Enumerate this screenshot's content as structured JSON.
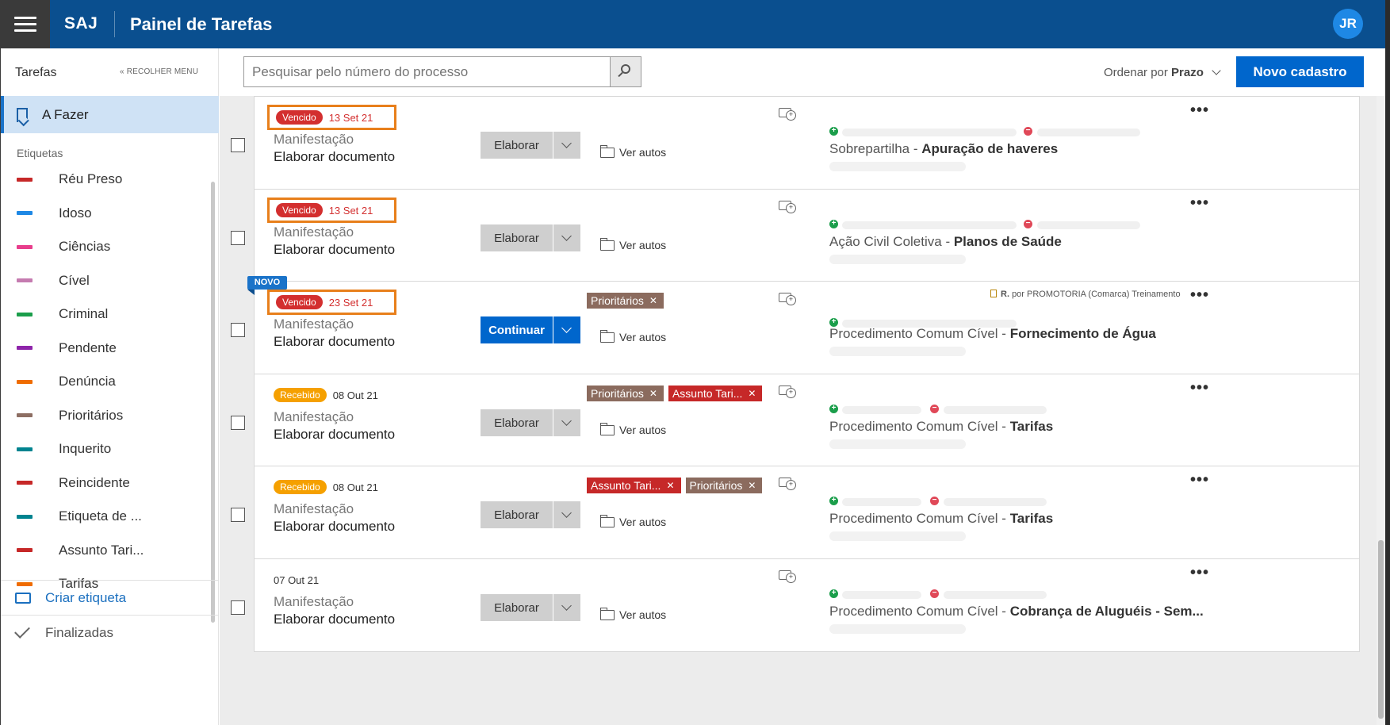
{
  "header": {
    "brand": "SAJ",
    "title": "Painel de Tarefas",
    "avatar": "JR"
  },
  "sidebar": {
    "section": "Tarefas",
    "collapse": "« RECOLHER MENU",
    "active": "A Fazer",
    "tags_header": "Etiquetas",
    "tags": [
      {
        "label": "Réu Preso",
        "color": "#c62828"
      },
      {
        "label": "Idoso",
        "color": "#1e88e5"
      },
      {
        "label": "Ciências",
        "color": "#e83e8c"
      },
      {
        "label": "Cível",
        "color": "#c57bb0"
      },
      {
        "label": "Criminal",
        "color": "#1b9e4b"
      },
      {
        "label": "Pendente",
        "color": "#8e24aa"
      },
      {
        "label": "Denúncia",
        "color": "#ef6c00"
      },
      {
        "label": "Prioritários",
        "color": "#8d6e63"
      },
      {
        "label": "Inquerito",
        "color": "#00838f"
      },
      {
        "label": "Reincidente",
        "color": "#c62828"
      },
      {
        "label": "Etiqueta de ...",
        "color": "#00838f"
      },
      {
        "label": "Assunto Tari...",
        "color": "#c62828"
      },
      {
        "label": "Tarifas",
        "color": "#ef6c00"
      }
    ],
    "create_tag": "Criar etiqueta",
    "finished": "Finalizadas"
  },
  "toolbar": {
    "search_placeholder": "Pesquisar pelo número do processo",
    "order_label": "Ordenar por",
    "order_value": "Prazo",
    "new_button": "Novo cadastro"
  },
  "tasks": [
    {
      "status": "Vencido",
      "date": "13 Set 21",
      "type": "Manifestação",
      "title": "Elaborar documento",
      "action": "Elaborar",
      "tags": [],
      "autos": "Ver autos",
      "class": "Sobrepartilha",
      "subject": "Apuração de haveres"
    },
    {
      "status": "Vencido",
      "date": "13 Set 21",
      "type": "Manifestação",
      "title": "Elaborar documento",
      "action": "Elaborar",
      "tags": [],
      "autos": "Ver autos",
      "class": "Ação Civil Coletiva",
      "subject": "Planos de Saúde"
    },
    {
      "badge": "NOVO",
      "status": "Vencido",
      "date": "23 Set 21",
      "type": "Manifestação",
      "title": "Elaborar documento",
      "action": "Continuar",
      "tags": [
        "Prioritários"
      ],
      "autos": "Ver autos",
      "responsible_initial": "R.",
      "responsible": "por PROMOTORIA (Comarca) Treinamento",
      "class": "Procedimento Comum Cível",
      "subject": "Fornecimento de Água"
    },
    {
      "status": "Recebido",
      "date": "08 Out 21",
      "type": "Manifestação",
      "title": "Elaborar documento",
      "action": "Elaborar",
      "tags": [
        "Prioritários",
        "Assunto Tari..."
      ],
      "autos": "Ver autos",
      "class": "Procedimento Comum Cível",
      "subject": "Tarifas"
    },
    {
      "status": "Recebido",
      "date": "08 Out 21",
      "type": "Manifestação",
      "title": "Elaborar documento",
      "action": "Elaborar",
      "tags": [
        "Assunto Tari...",
        "Prioritários"
      ],
      "autos": "Ver autos",
      "class": "Procedimento Comum Cível",
      "subject": "Tarifas"
    },
    {
      "date": "07 Out 21",
      "type": "Manifestação",
      "title": "Elaborar documento",
      "action": "Elaborar",
      "tags": [],
      "autos": "Ver autos",
      "class": "Procedimento Comum Cível",
      "subject": "Cobrança de Aluguéis - Sem..."
    }
  ],
  "colors": {
    "brand_bar": "#0a4f8f",
    "primary": "#0066cc",
    "overdue": "#d32f2f",
    "received": "#f5a000",
    "highlight": "#e87f1b"
  }
}
